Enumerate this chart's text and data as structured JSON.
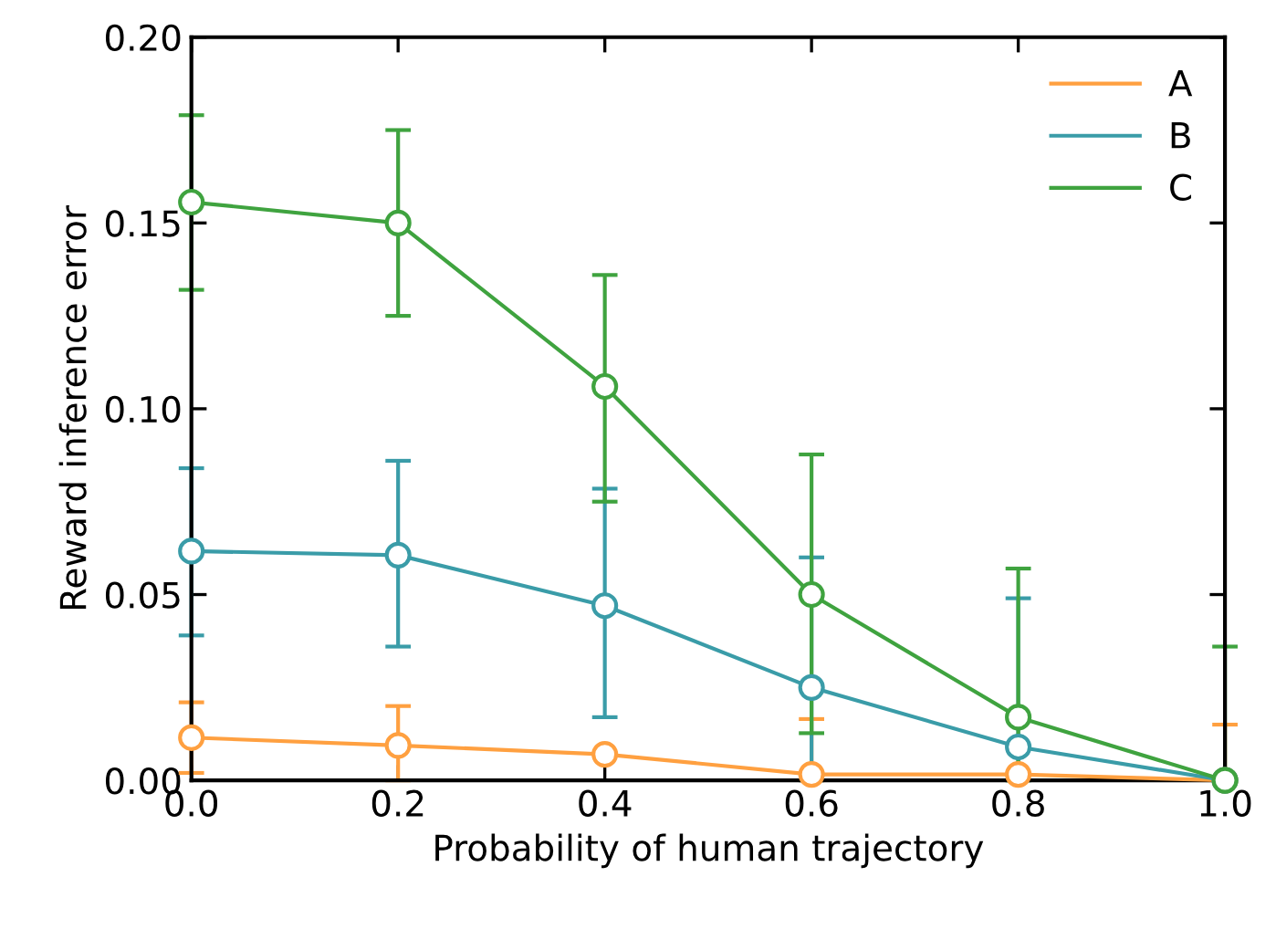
{
  "chart_data": {
    "type": "line",
    "xlabel": "Probability of human trajectory",
    "ylabel": "Reward inference error",
    "x": [
      0.0,
      0.2,
      0.4,
      0.6,
      0.8,
      1.0
    ],
    "series": [
      {
        "name": "A",
        "color": "#ffa040",
        "values": [
          0.0115,
          0.0094,
          0.007,
          0.0016,
          0.0016,
          0.0
        ],
        "errors": [
          [
            0.002,
            0.021
          ],
          [
            0.0,
            0.02
          ],
          null,
          [
            0.0,
            0.0165
          ],
          null,
          [
            0.0,
            0.015
          ]
        ]
      },
      {
        "name": "B",
        "color": "#3a9ca8",
        "values": [
          0.0617,
          0.0606,
          0.047,
          0.025,
          0.009,
          0.0
        ],
        "errors": [
          [
            0.039,
            0.084
          ],
          [
            0.036,
            0.086
          ],
          [
            0.017,
            0.0785
          ],
          [
            0.0,
            0.06
          ],
          [
            0.0,
            0.049
          ],
          null
        ]
      },
      {
        "name": "C",
        "color": "#3fa33f",
        "values": [
          0.1556,
          0.15,
          0.106,
          0.05,
          0.017,
          0.0
        ],
        "errors": [
          [
            0.132,
            0.179
          ],
          [
            0.125,
            0.175
          ],
          [
            0.075,
            0.136
          ],
          [
            0.0127,
            0.0877
          ],
          [
            0.0,
            0.057
          ],
          [
            0.0,
            0.036
          ]
        ]
      }
    ],
    "xlim": [
      0.0,
      1.0
    ],
    "xticks": [
      {
        "value": 0.0,
        "label": "0.0"
      },
      0.2,
      0.4,
      0.6,
      0.8,
      {
        "value": 1.0,
        "label": "1.0"
      }
    ],
    "ylim": [
      0.0,
      0.2
    ],
    "yticks": [
      {
        "value": 0.0,
        "label": "0.00"
      },
      0.05,
      {
        "value": 0.1,
        "label": "0.10"
      },
      0.15,
      {
        "value": 0.2,
        "label": "0.20"
      }
    ],
    "marker": "circle",
    "line_style": "solid",
    "legend": "top right",
    "grid": false
  }
}
